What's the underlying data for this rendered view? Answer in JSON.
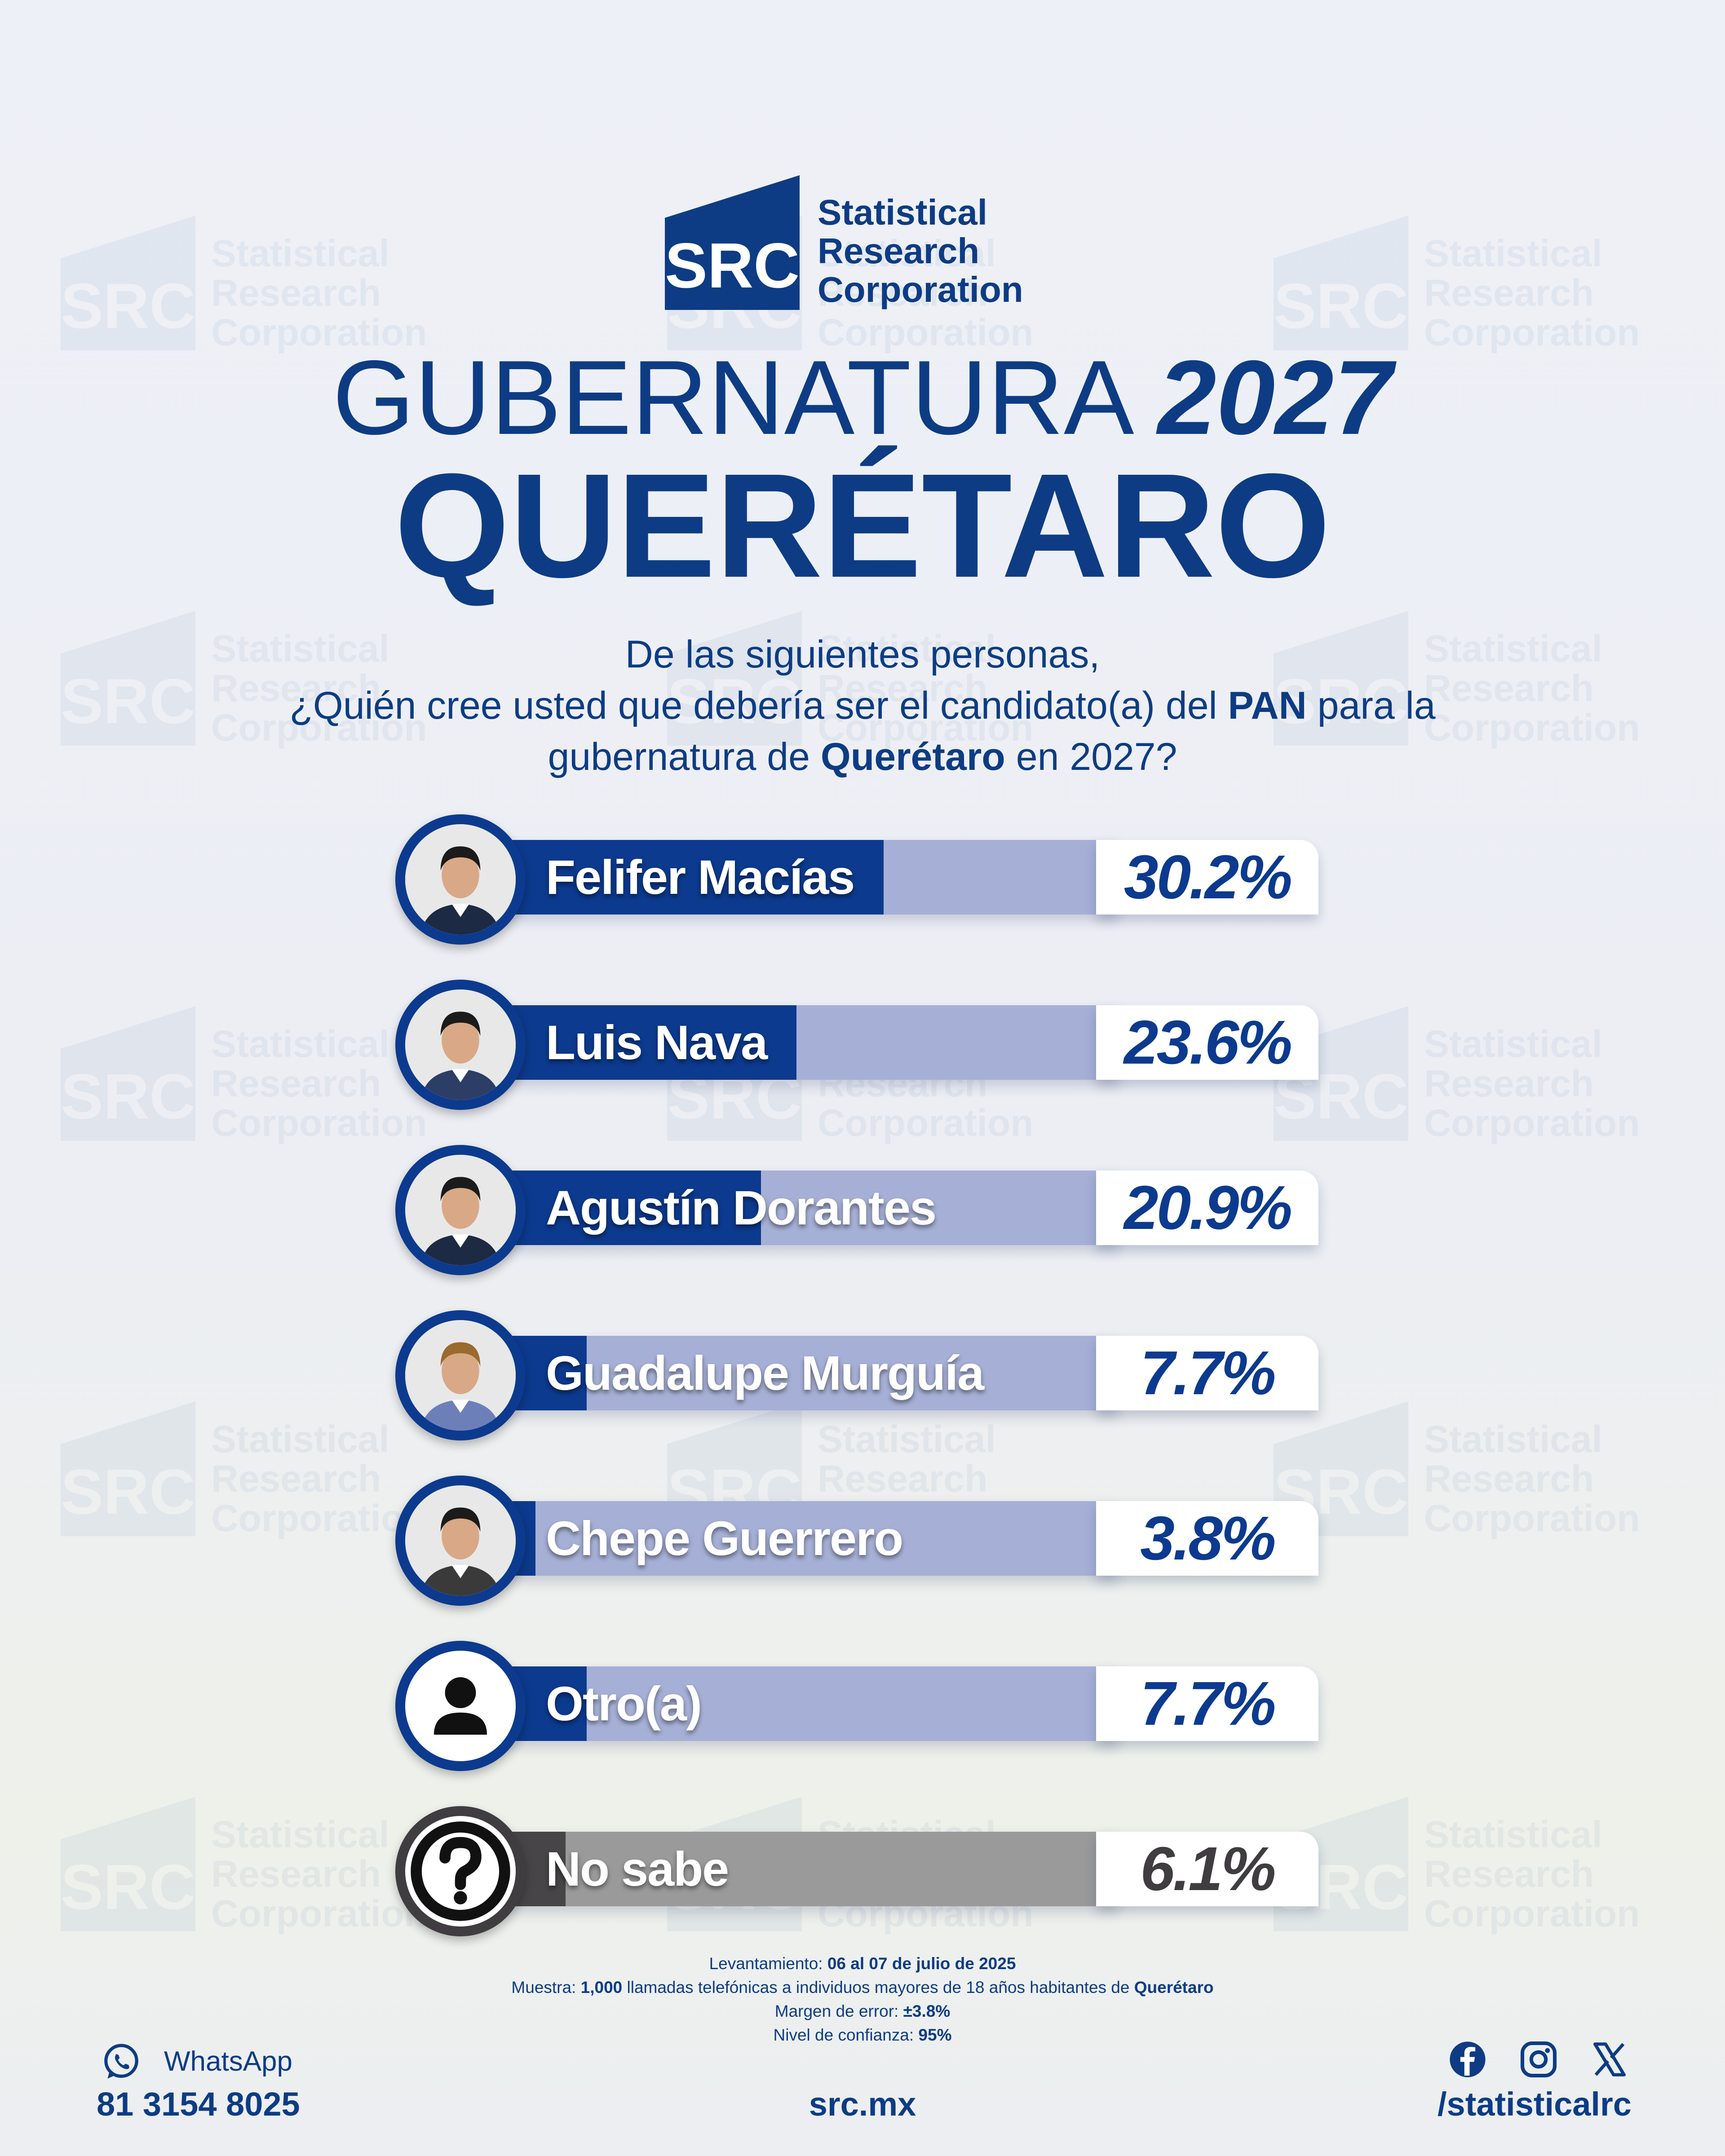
{
  "brand": {
    "logo_mark": "SRC",
    "name_lines": [
      "Statistical",
      "Research",
      "Corporation"
    ]
  },
  "header": {
    "title_light": "GUBERNATURA",
    "title_bold": "2027",
    "state": "QUERÉTARO"
  },
  "question": {
    "line1": "De las siguientes personas,",
    "line2_a": "¿Quién cree usted que debería ser el candidato(a) del ",
    "line2_bold": "PAN",
    "line2_b": " para la",
    "line3_a": "gubernatura de ",
    "line3_bold": "Querétaro",
    "line3_b": " en 2027?"
  },
  "chart_data": {
    "type": "bar",
    "orientation": "horizontal",
    "categories": [
      "Felifer Macías",
      "Luis Nava",
      "Agustín Dorantes",
      "Guadalupe Murguía",
      "Chepe Guerrero",
      "Otro(a)",
      "No sabe"
    ],
    "values": [
      30.2,
      23.6,
      20.9,
      7.7,
      3.8,
      7.7,
      6.1
    ],
    "labels": [
      "30.2%",
      "23.6%",
      "20.9%",
      "7.7%",
      "3.8%",
      "7.7%",
      "6.1%"
    ],
    "xlim": [
      0,
      48
    ],
    "colors": [
      "#0c3a8e",
      "#0c3a8e",
      "#0c3a8e",
      "#0c3a8e",
      "#0c3a8e",
      "#0c3a8e",
      "#474547"
    ],
    "avatars": [
      "photo",
      "photo",
      "photo",
      "photo",
      "photo",
      "person-icon",
      "question-icon"
    ]
  },
  "methodology": {
    "survey_label": "Levantamiento:",
    "survey_value": "06 al 07 de julio de 2025",
    "sample_label": "Muestra:",
    "sample_value": "1,000",
    "sample_text": "llamadas telefónicas a individuos mayores de 18 años habitantes de",
    "sample_place": "Querétaro",
    "margin_label": "Margen de error:",
    "margin_value": "±3.8%",
    "confidence_label": "Nivel de confianza:",
    "confidence_value": "95%"
  },
  "footer": {
    "whatsapp_label": "WhatsApp",
    "phone": "81 3154 8025",
    "website": "src.mx",
    "social_handle": "/statisticalrc",
    "social_icons": [
      "facebook-icon",
      "instagram-icon",
      "x-icon"
    ]
  }
}
